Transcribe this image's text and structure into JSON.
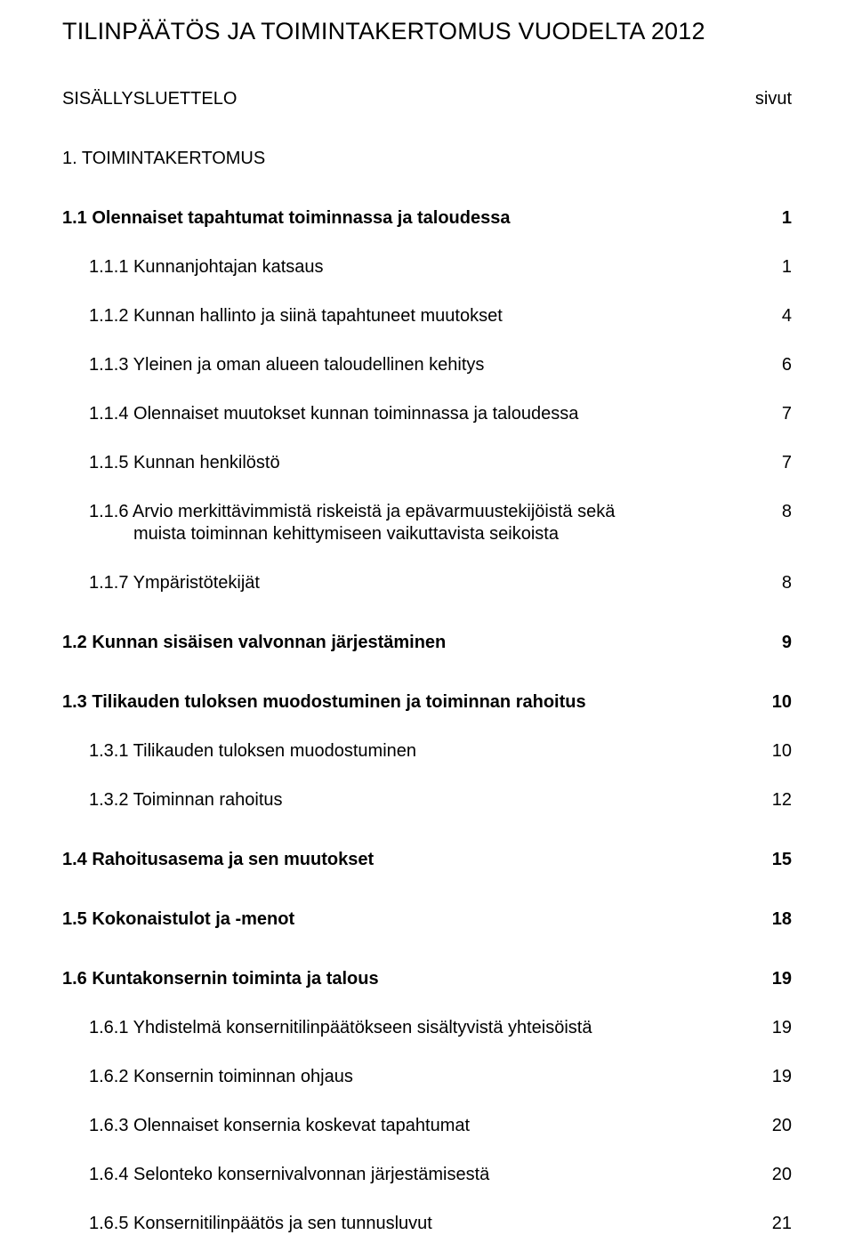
{
  "doc": {
    "title": "TILINPÄÄTÖS JA TOIMINTAKERTOMUS VUODELTA 2012",
    "toc_header_left": "SISÄLLYSLUETTELO",
    "toc_header_right": "sivut",
    "entries": [
      {
        "label": "1. TOIMINTAKERTOMUS",
        "page": "",
        "bold": false,
        "indent": 0,
        "gap": "section"
      },
      {
        "label": "1.1 Olennaiset tapahtumat toiminnassa ja taloudessa",
        "page": "1",
        "bold": true,
        "indent": 0,
        "gap": "section"
      },
      {
        "label": "1.1.1 Kunnanjohtajan katsaus",
        "page": "1",
        "bold": false,
        "indent": 1,
        "gap": "sub"
      },
      {
        "label": "1.1.2 Kunnan hallinto ja siinä tapahtuneet muutokset",
        "page": "4",
        "bold": false,
        "indent": 1,
        "gap": "sub"
      },
      {
        "label": "1.1.3 Yleinen ja oman alueen taloudellinen kehitys",
        "page": "6",
        "bold": false,
        "indent": 1,
        "gap": "sub"
      },
      {
        "label": "1.1.4 Olennaiset muutokset kunnan toiminnassa ja taloudessa",
        "page": "7",
        "bold": false,
        "indent": 1,
        "gap": "sub"
      },
      {
        "label": "1.1.5 Kunnan henkilöstö",
        "page": "7",
        "bold": false,
        "indent": 1,
        "gap": "sub"
      },
      {
        "label": "1.1.6 Arvio merkittävimmistä riskeistä ja epävarmuustekijöistä sekä",
        "label2": "muista toiminnan kehittymiseen vaikuttavista seikoista",
        "page": "8",
        "bold": false,
        "indent": 1,
        "gap": "sub",
        "multiline": true
      },
      {
        "label": "1.1.7 Ympäristötekijät",
        "page": "8",
        "bold": false,
        "indent": 1,
        "gap": "sub"
      },
      {
        "label": "1.2 Kunnan sisäisen valvonnan järjestäminen",
        "page": "9",
        "bold": true,
        "indent": 0,
        "gap": "section"
      },
      {
        "label": "1.3 Tilikauden tuloksen muodostuminen ja toiminnan rahoitus",
        "page": "10",
        "bold": true,
        "indent": 0,
        "gap": "section"
      },
      {
        "label": "1.3.1 Tilikauden tuloksen muodostuminen",
        "page": "10",
        "bold": false,
        "indent": 1,
        "gap": "sub"
      },
      {
        "label": "1.3.2 Toiminnan rahoitus",
        "page": "12",
        "bold": false,
        "indent": 1,
        "gap": "sub"
      },
      {
        "label": "1.4 Rahoitusasema ja sen muutokset",
        "page": "15",
        "bold": true,
        "indent": 0,
        "gap": "section"
      },
      {
        "label": "1.5 Kokonaistulot ja -menot",
        "page": "18",
        "bold": true,
        "indent": 0,
        "gap": "section"
      },
      {
        "label": "1.6 Kuntakonsernin toiminta ja talous",
        "page": "19",
        "bold": true,
        "indent": 0,
        "gap": "section"
      },
      {
        "label": "1.6.1 Yhdistelmä konsernitilinpäätökseen sisältyvistä yhteisöistä",
        "page": "19",
        "bold": false,
        "indent": 1,
        "gap": "sub"
      },
      {
        "label": "1.6.2 Konsernin toiminnan ohjaus",
        "page": "19",
        "bold": false,
        "indent": 1,
        "gap": "sub"
      },
      {
        "label": "1.6.3 Olennaiset konsernia koskevat tapahtumat",
        "page": "20",
        "bold": false,
        "indent": 1,
        "gap": "sub"
      },
      {
        "label": "1.6.4 Selonteko konsernivalvonnan järjestämisestä",
        "page": "20",
        "bold": false,
        "indent": 1,
        "gap": "sub"
      },
      {
        "label": "1.6.5 Konsernitilinpäätös ja sen tunnusluvut",
        "page": "21",
        "bold": false,
        "indent": 1,
        "gap": "sub"
      }
    ]
  }
}
